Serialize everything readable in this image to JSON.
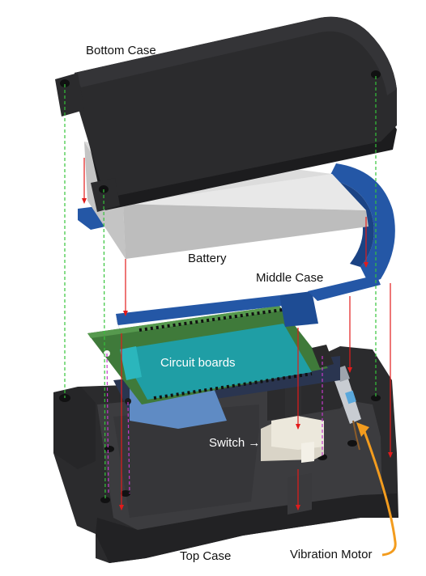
{
  "labels": {
    "bottom_case": "Bottom Case",
    "battery": "Battery",
    "middle_case": "Middle Case",
    "circuit_boards": "Circuit boards",
    "switch": "Switch →",
    "top_case": "Top Case",
    "vibration_motor": "Vibration Motor"
  },
  "colors": {
    "case_dark": "#2b2b2d",
    "middle_case_blue": "#2457a6",
    "pcb_green": "#3f7a3a",
    "battery_gray": "#dcdcdc",
    "guide_red": "#e31b1b",
    "guide_green": "#35c43a",
    "guide_magenta": "#c53acb",
    "callout_orange": "#f39c1e"
  }
}
